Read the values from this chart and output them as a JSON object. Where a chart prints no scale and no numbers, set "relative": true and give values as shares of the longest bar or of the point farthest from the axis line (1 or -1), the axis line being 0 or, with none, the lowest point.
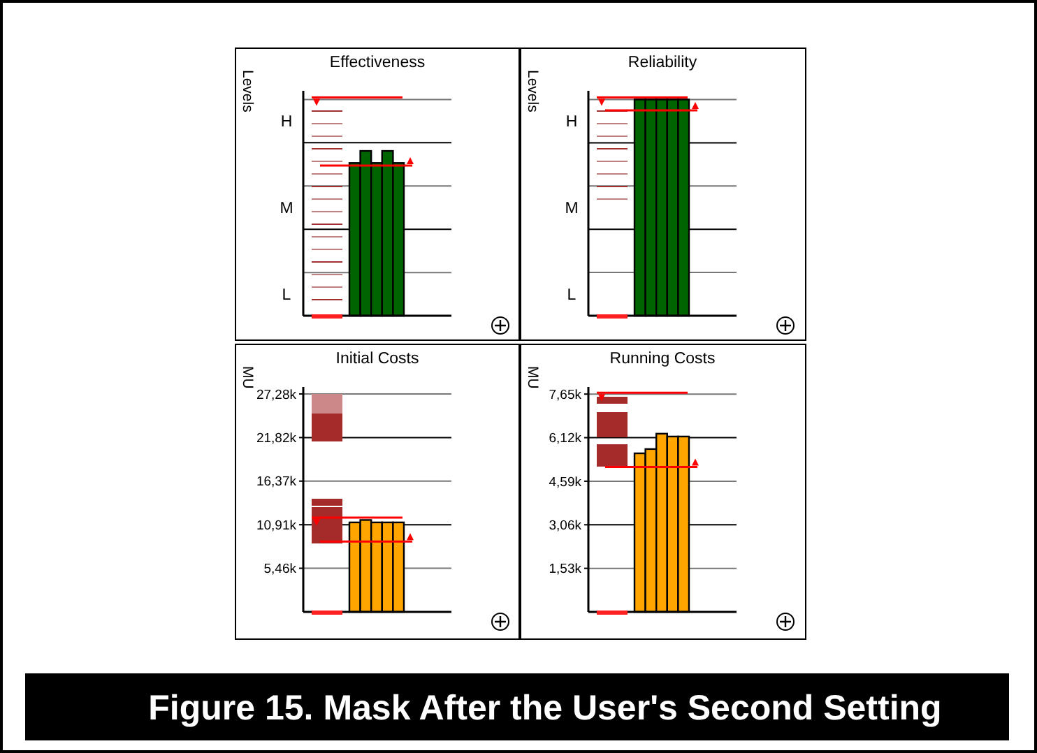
{
  "chart_data": [
    {
      "type": "bar",
      "title": "Effectiveness",
      "ylabel": "Levels",
      "relative": true,
      "categories": [
        null,
        null,
        null,
        null,
        null
      ],
      "values": [
        0.927,
        1,
        0.927,
        1,
        0.927
      ],
      "color": "#006400",
      "annotations": [
        "L",
        "M",
        "H"
      ],
      "ref_lines": [
        {
          "axis": "y",
          "value": 1.325,
          "color": "#ff0000"
        },
        {
          "axis": "y",
          "value": 0.911,
          "color": "#ff0000"
        },
        {
          "axis": "y",
          "value": 0.262
        },
        {
          "axis": "y",
          "value": 0.525
        },
        {
          "axis": "y",
          "value": 0.787
        },
        {
          "axis": "y",
          "value": 1.05
        },
        {
          "axis": "y",
          "value": 1.312
        }
      ]
    },
    {
      "type": "bar",
      "title": "Reliability",
      "ylabel": "Levels",
      "relative": true,
      "categories": [
        null,
        null,
        null,
        null,
        null
      ],
      "values": [
        1,
        1,
        1,
        1,
        1
      ],
      "color": "#006400",
      "annotations": [
        "L",
        "M",
        "H"
      ],
      "ref_lines": [
        {
          "axis": "y",
          "value": 1.01,
          "color": "#ff0000"
        },
        {
          "axis": "y",
          "value": 0.95,
          "color": "#ff0000"
        },
        {
          "axis": "y",
          "value": 0.2
        },
        {
          "axis": "y",
          "value": 0.4
        },
        {
          "axis": "y",
          "value": 0.6
        },
        {
          "axis": "y",
          "value": 0.8
        },
        {
          "axis": "y",
          "value": 1
        }
      ]
    },
    {
      "type": "bar",
      "title": "Initial Costs",
      "ylabel": "MU",
      "categories": [
        null,
        null,
        null,
        null,
        null
      ],
      "values": [
        11.2,
        11.5,
        11.2,
        11.2,
        11.2
      ],
      "color": "#ffa500",
      "ylim": [
        0,
        28.15
      ],
      "yticks": [
        {
          "value": 5.46,
          "label": "5,46k"
        },
        {
          "value": 10.91,
          "label": "10,91k"
        },
        {
          "value": 16.37,
          "label": "16,37k"
        },
        {
          "value": 21.82,
          "label": "21,82k"
        },
        {
          "value": 27.28,
          "label": "27,28k"
        }
      ],
      "grid": "y",
      "ref_lines": [
        {
          "axis": "y",
          "value": 11.8,
          "color": "#ff0000"
        },
        {
          "axis": "y",
          "value": 8.8,
          "color": "#ff0000"
        }
      ]
    },
    {
      "type": "bar",
      "title": "Running Costs",
      "ylabel": "MU",
      "categories": [
        null,
        null,
        null,
        null,
        null
      ],
      "values": [
        5.57,
        5.72,
        6.26,
        6.16,
        6.16
      ],
      "color": "#ffa500",
      "ylim": [
        0,
        7.9
      ],
      "yticks": [
        {
          "value": 1.53,
          "label": "1,53k"
        },
        {
          "value": 3.06,
          "label": "3,06k"
        },
        {
          "value": 4.59,
          "label": "4,59k"
        },
        {
          "value": 6.12,
          "label": "6,12k"
        },
        {
          "value": 7.65,
          "label": "7,65k"
        }
      ],
      "grid": "y",
      "ref_lines": [
        {
          "axis": "y",
          "value": 7.7,
          "color": "#ff0000"
        },
        {
          "axis": "y",
          "value": 5.09,
          "color": "#ff0000"
        }
      ],
      "annotations": [
        "Figure 15. Mask After the User's Second Setting"
      ]
    }
  ]
}
